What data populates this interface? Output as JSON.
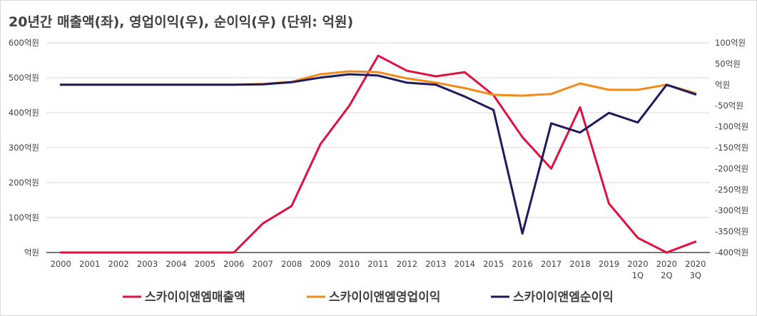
{
  "chart_data": {
    "type": "line",
    "title": "20년간 매출액(좌), 영업이익(우), 순이익(우) (단위: 억원)",
    "categories": [
      "2000",
      "2001",
      "2002",
      "2003",
      "2004",
      "2005",
      "2006",
      "2007",
      "2008",
      "2009",
      "2010",
      "2011",
      "2012",
      "2013",
      "2014",
      "2015",
      "2016",
      "2017",
      "2018",
      "2019",
      "2020 1Q",
      "2020 2Q",
      "2020 3Q"
    ],
    "x_tick_lines": [
      [
        "2000"
      ],
      [
        "2001"
      ],
      [
        "2002"
      ],
      [
        "2003"
      ],
      [
        "2004"
      ],
      [
        "2005"
      ],
      [
        "2006"
      ],
      [
        "2007"
      ],
      [
        "2008"
      ],
      [
        "2009"
      ],
      [
        "2010"
      ],
      [
        "2011"
      ],
      [
        "2012"
      ],
      [
        "2013"
      ],
      [
        "2014"
      ],
      [
        "2015"
      ],
      [
        "2016"
      ],
      [
        "2017"
      ],
      [
        "2018"
      ],
      [
        "2019"
      ],
      [
        "2020",
        "1Q"
      ],
      [
        "2020",
        "2Q"
      ],
      [
        "2020",
        "3Q"
      ]
    ],
    "y_left": {
      "ylim": [
        0,
        600
      ],
      "ticks": [
        0,
        100,
        200,
        300,
        400,
        500,
        600
      ],
      "tick_labels": [
        "억원",
        "100억원",
        "200억원",
        "300억원",
        "400억원",
        "500억원",
        "600억원"
      ]
    },
    "y_right": {
      "ylim": [
        -400,
        100
      ],
      "ticks": [
        -400,
        -350,
        -300,
        -250,
        -200,
        -150,
        -100,
        -50,
        0,
        50,
        100
      ],
      "tick_labels": [
        "-400억원",
        "-350억원",
        "-300억원",
        "-250억원",
        "-200억원",
        "-150억원",
        "-100억원",
        "-50억원",
        "억원",
        "50억원",
        "100억원"
      ]
    },
    "series": [
      {
        "name": "스카이이앤엠매출액",
        "axis": "left",
        "color": "#e0103f",
        "values": [
          0,
          0,
          0,
          0,
          0,
          0,
          0,
          83,
          133,
          310,
          420,
          563,
          520,
          504,
          516,
          450,
          330,
          240,
          416,
          140,
          42,
          0,
          31
        ]
      },
      {
        "name": "스카이이앤엠영업이익",
        "axis": "right",
        "color": "#f28a1a",
        "values": [
          0,
          0,
          0,
          0,
          0,
          0,
          0,
          2,
          7,
          25,
          32,
          30,
          15,
          5,
          -8,
          -24,
          -26,
          -22,
          3,
          -12,
          -12,
          0,
          -20
        ]
      },
      {
        "name": "스카이이앤엠순이익",
        "axis": "right",
        "color": "#1e1a5c",
        "values": [
          0,
          0,
          0,
          0,
          0,
          0,
          0,
          1,
          6,
          17,
          25,
          22,
          5,
          0,
          -28,
          -60,
          -355,
          -92,
          -114,
          -67,
          -90,
          0,
          -23
        ]
      }
    ],
    "grid": true,
    "legend_position": "bottom"
  }
}
